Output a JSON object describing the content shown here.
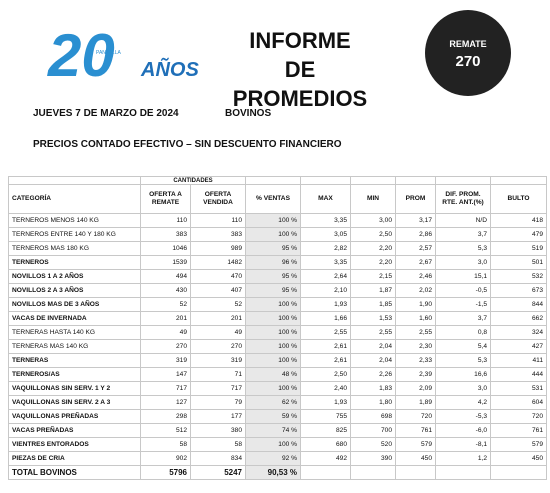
{
  "logo": {
    "number": "20",
    "word": "AÑOS",
    "brand": "PANTALLA"
  },
  "header": {
    "title_line1": "INFORME",
    "title_line2": "DE PROMEDIOS",
    "badge_label": "REMATE",
    "badge_number": "270"
  },
  "subheader": {
    "date": "JUEVES 7 DE MARZO DE 2024",
    "species": "BOVINOS",
    "note": "PRECIOS CONTADO EFECTIVO – SIN DESCUENTO FINANCIERO"
  },
  "table": {
    "group_header": "CANTIDADES",
    "columns": [
      "CATEGORÍA",
      "OFERTA A REMATE",
      "OFERTA VENDIDA",
      "% VENTAS",
      "MAX",
      "MIN",
      "PROM",
      "DIF. PROM. RTE. ANT.(%)",
      "BULTO"
    ],
    "rows": [
      {
        "cells": [
          "TERNEROS MENOS 140 KG",
          "110",
          "110",
          "100 %",
          "3,35",
          "3,00",
          "3,17",
          "N/D",
          "418"
        ],
        "bold": false
      },
      {
        "cells": [
          "TERNEROS ENTRE 140 Y 180 KG",
          "383",
          "383",
          "100 %",
          "3,05",
          "2,50",
          "2,86",
          "3,7",
          "479"
        ],
        "bold": false
      },
      {
        "cells": [
          "TERNEROS MAS 180 KG",
          "1046",
          "989",
          "95 %",
          "2,82",
          "2,20",
          "2,57",
          "5,3",
          "519"
        ],
        "bold": false
      },
      {
        "cells": [
          "TERNEROS",
          "1539",
          "1482",
          "96 %",
          "3,35",
          "2,20",
          "2,67",
          "3,0",
          "501"
        ],
        "bold": true
      },
      {
        "cells": [
          "NOVILLOS 1 A 2 AÑOS",
          "494",
          "470",
          "95 %",
          "2,64",
          "2,15",
          "2,46",
          "15,1",
          "532"
        ],
        "bold": true
      },
      {
        "cells": [
          "NOVILLOS 2 A 3 AÑOS",
          "430",
          "407",
          "95 %",
          "2,10",
          "1,87",
          "2,02",
          "-0,5",
          "673"
        ],
        "bold": true
      },
      {
        "cells": [
          "NOVILLOS MAS DE 3 AÑOS",
          "52",
          "52",
          "100 %",
          "1,93",
          "1,85",
          "1,90",
          "-1,5",
          "844"
        ],
        "bold": true
      },
      {
        "cells": [
          "VACAS DE INVERNADA",
          "201",
          "201",
          "100 %",
          "1,66",
          "1,53",
          "1,60",
          "3,7",
          "662"
        ],
        "bold": true
      },
      {
        "cells": [
          "TERNERAS HASTA 140 KG",
          "49",
          "49",
          "100 %",
          "2,55",
          "2,55",
          "2,55",
          "0,8",
          "324"
        ],
        "bold": false
      },
      {
        "cells": [
          "TERNERAS MAS 140 KG",
          "270",
          "270",
          "100 %",
          "2,61",
          "2,04",
          "2,30",
          "5,4",
          "427"
        ],
        "bold": false
      },
      {
        "cells": [
          "TERNERAS",
          "319",
          "319",
          "100 %",
          "2,61",
          "2,04",
          "2,33",
          "5,3",
          "411"
        ],
        "bold": true
      },
      {
        "cells": [
          "TERNEROS/AS",
          "147",
          "71",
          "48 %",
          "2,50",
          "2,26",
          "2,39",
          "16,6",
          "444"
        ],
        "bold": true
      },
      {
        "cells": [
          "VAQUILLONAS SIN SERV. 1 Y 2",
          "717",
          "717",
          "100 %",
          "2,40",
          "1,83",
          "2,09",
          "3,0",
          "531"
        ],
        "bold": true
      },
      {
        "cells": [
          "VAQUILLONAS SIN SERV. 2 A 3",
          "127",
          "79",
          "62 %",
          "1,93",
          "1,80",
          "1,89",
          "4,2",
          "604"
        ],
        "bold": true
      },
      {
        "cells": [
          "VAQUILLONAS PREÑADAS",
          "298",
          "177",
          "59 %",
          "755",
          "698",
          "720",
          "-5,3",
          "720"
        ],
        "bold": true
      },
      {
        "cells": [
          "VACAS PREÑADAS",
          "512",
          "380",
          "74 %",
          "825",
          "700",
          "761",
          "-6,0",
          "761"
        ],
        "bold": true
      },
      {
        "cells": [
          "VIENTRES ENTORADOS",
          "58",
          "58",
          "100 %",
          "680",
          "520",
          "579",
          "-8,1",
          "579"
        ],
        "bold": true
      },
      {
        "cells": [
          "PIEZAS DE CRIA",
          "902",
          "834",
          "92 %",
          "492",
          "390",
          "450",
          "1,2",
          "450"
        ],
        "bold": true
      }
    ],
    "total": [
      "TOTAL BOVINOS",
      "5796",
      "5247",
      "90,53 %"
    ]
  }
}
